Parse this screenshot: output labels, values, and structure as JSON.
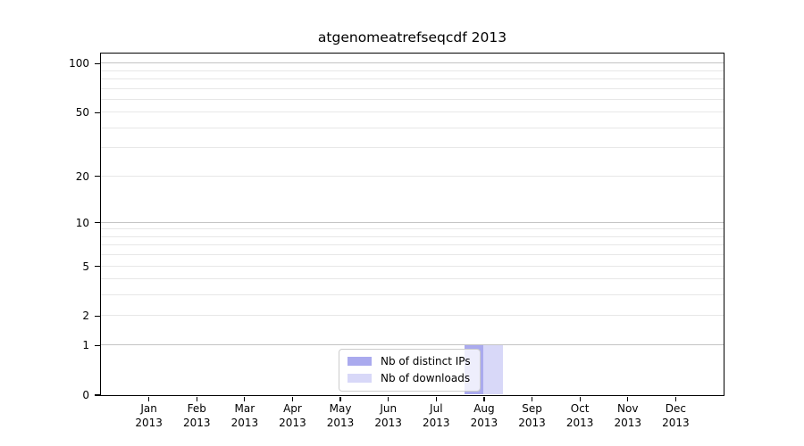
{
  "chart_data": {
    "type": "bar",
    "title": "atgenomeatrefseqcdf 2013",
    "categories": [
      "Jan",
      "Feb",
      "Mar",
      "Apr",
      "May",
      "Jun",
      "Jul",
      "Aug",
      "Sep",
      "Oct",
      "Nov",
      "Dec"
    ],
    "category_year": "2013",
    "series": [
      {
        "name": "Nb of distinct IPs",
        "color": "#aaaaee",
        "values": [
          0,
          0,
          0,
          0,
          0,
          0,
          0,
          1,
          0,
          0,
          0,
          0
        ]
      },
      {
        "name": "Nb of downloads",
        "color": "#d8d8f8",
        "values": [
          0,
          0,
          0,
          0,
          0,
          0,
          0,
          1,
          0,
          0,
          0,
          0
        ]
      }
    ],
    "yscale": "log1p",
    "ylim": [
      0,
      115
    ],
    "yticks": [
      0,
      1,
      2,
      5,
      10,
      20,
      50,
      100
    ],
    "major_gridlines": [
      1,
      10,
      100
    ],
    "minor_gridlines": [
      2,
      3,
      4,
      5,
      6,
      7,
      8,
      9,
      20,
      30,
      40,
      50,
      60,
      70,
      80,
      90
    ],
    "grid": "horizontal",
    "legend_position": "bottom-center",
    "xlabel": "",
    "ylabel": ""
  },
  "colors": {
    "background": "#ffffff",
    "axis": "#000000",
    "major_grid": "#c4c4c4",
    "minor_grid": "#e7e7e7",
    "legend_border": "#cccccc",
    "text": "#000000"
  }
}
